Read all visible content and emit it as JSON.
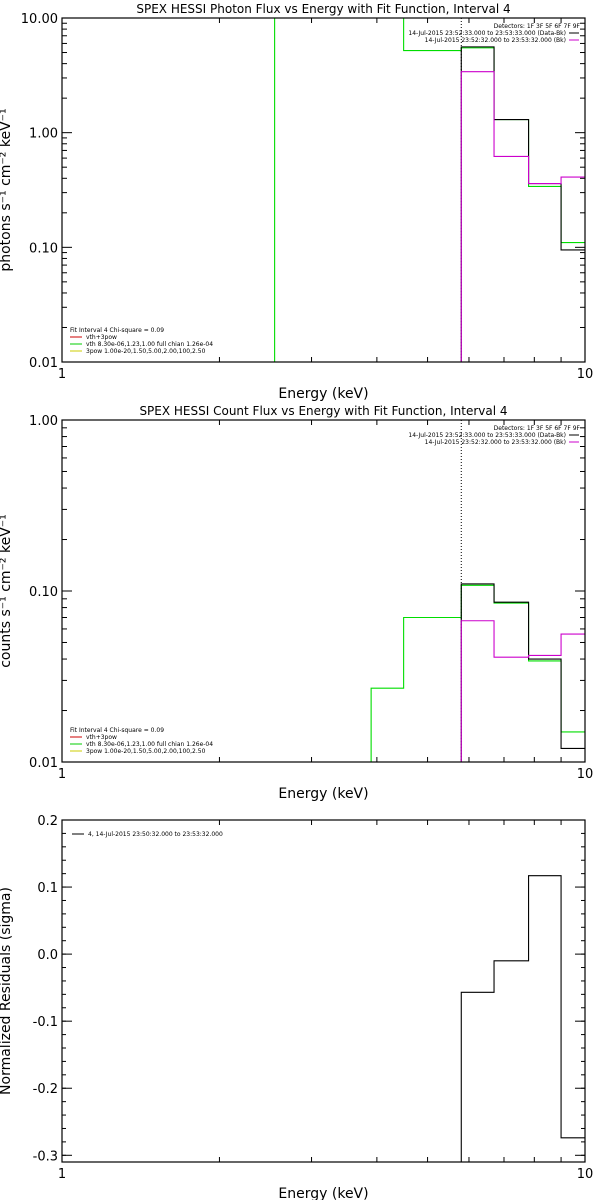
{
  "chart_data": [
    {
      "type": "line",
      "title": "SPEX HESSI Photon Flux vs Energy with Fit Function, Interval 4",
      "xlabel": "Energy (keV)",
      "ylabel": "photons s⁻¹ cm⁻² keV⁻¹",
      "xscale": "log",
      "yscale": "log",
      "xlim": [
        1,
        10
      ],
      "ylim": [
        0.01,
        10
      ],
      "xticks": [
        {
          "v": 1,
          "label": "1"
        },
        {
          "v": 10,
          "label": "10"
        }
      ],
      "yticks": [
        {
          "v": 0.01,
          "label": "0.01"
        },
        {
          "v": 0.1,
          "label": "0.10"
        },
        {
          "v": 1,
          "label": "1.00"
        },
        {
          "v": 10,
          "label": "10.00"
        }
      ],
      "legend": {
        "placement": "top-right",
        "header": "Detectors: 1F 3F 5F 6F 7F 9F",
        "entries": [
          {
            "text": "14-Jul-2015 23:52:33.000 to 23:53:33.000 (Data-Bk)",
            "color": "#000000"
          },
          {
            "text": "14-Jul-2015 23:52:32.000 to 23:53:32.000 (Bk)",
            "color": "#cc00cc"
          }
        ]
      },
      "fit_legend": {
        "placement": "bottom-left",
        "title": "Fit Interval 4   Chi-square = 0.09",
        "entries": [
          {
            "text": "vth+3pow",
            "color": "#cc0000"
          },
          {
            "text": "vth 8.30e-06,1.23,1.00  full chian 1.26e-04",
            "color": "#00cc00"
          },
          {
            "text": "3pow 1.00e-20,1.50,5.00,2.00,100,2.50",
            "color": "#cccc00"
          }
        ]
      },
      "vlines": [
        {
          "x": 5.8,
          "color": "#000000",
          "dash": true
        }
      ],
      "series": [
        {
          "color": "#00dd00",
          "steps": [
            [
              2.55,
              3.3,
              40
            ],
            [
              3.3,
              3.9,
              40
            ],
            [
              3.9,
              4.5,
              40
            ],
            [
              4.5,
              5.8,
              5.2
            ],
            [
              5.8,
              6.7,
              5.5
            ],
            [
              6.7,
              7.8,
              1.3
            ],
            [
              7.8,
              9.0,
              0.34
            ],
            [
              9.0,
              10,
              0.11
            ]
          ]
        },
        {
          "color": "#000000",
          "steps": [
            [
              5.8,
              6.7,
              5.6
            ],
            [
              6.7,
              7.8,
              1.3
            ],
            [
              7.8,
              9.0,
              0.36
            ],
            [
              9.0,
              10,
              0.095
            ]
          ]
        },
        {
          "color": "#cc00cc",
          "steps": [
            [
              5.8,
              6.7,
              3.4
            ],
            [
              6.7,
              7.8,
              0.62
            ],
            [
              7.8,
              9.0,
              0.36
            ],
            [
              9.0,
              10,
              0.41
            ]
          ]
        }
      ]
    },
    {
      "type": "line",
      "title": "SPEX HESSI Count Flux vs Energy with Fit Function, Interval 4",
      "xlabel": "Energy (keV)",
      "ylabel": "counts s⁻¹ cm⁻² keV⁻¹",
      "xscale": "log",
      "yscale": "log",
      "xlim": [
        1,
        10
      ],
      "ylim": [
        0.01,
        1
      ],
      "xticks": [
        {
          "v": 1,
          "label": "1"
        },
        {
          "v": 10,
          "label": "10"
        }
      ],
      "yticks": [
        {
          "v": 0.01,
          "label": "0.01"
        },
        {
          "v": 0.1,
          "label": "0.10"
        },
        {
          "v": 1,
          "label": "1.00"
        }
      ],
      "legend": {
        "placement": "top-right",
        "header": "Detectors: 1F 3F 5F 6F 7F 9F",
        "entries": [
          {
            "text": "14-Jul-2015 23:52:33.000 to 23:53:33.000 (Data-Bk)",
            "color": "#000000"
          },
          {
            "text": "14-Jul-2015 23:52:32.000 to 23:53:32.000 (Bk)",
            "color": "#cc00cc"
          }
        ]
      },
      "fit_legend": {
        "placement": "bottom-left",
        "title": "Fit Interval 4   Chi-square = 0.09",
        "entries": [
          {
            "text": "vth+3pow",
            "color": "#cc0000"
          },
          {
            "text": "vth 8.30e-06,1.23,1.00  full chian 1.26e-04",
            "color": "#00cc00"
          },
          {
            "text": "3pow 1.00e-20,1.50,5.00,2.00,100,2.50",
            "color": "#cccc00"
          }
        ]
      },
      "vlines": [
        {
          "x": 5.8,
          "color": "#000000",
          "dash": true
        }
      ],
      "series": [
        {
          "color": "#00dd00",
          "steps": [
            [
              3.9,
              4.5,
              0.027
            ],
            [
              4.5,
              5.8,
              0.07
            ],
            [
              5.8,
              6.7,
              0.108
            ],
            [
              6.7,
              7.8,
              0.085
            ],
            [
              7.8,
              9.0,
              0.039
            ],
            [
              9.0,
              10,
              0.015
            ]
          ]
        },
        {
          "color": "#000000",
          "steps": [
            [
              5.8,
              6.7,
              0.11
            ],
            [
              6.7,
              7.8,
              0.086
            ],
            [
              7.8,
              9.0,
              0.04
            ],
            [
              9.0,
              10,
              0.012
            ]
          ]
        },
        {
          "color": "#cc00cc",
          "steps": [
            [
              5.8,
              6.7,
              0.067
            ],
            [
              6.7,
              7.8,
              0.041
            ],
            [
              7.8,
              9.0,
              0.042
            ],
            [
              9.0,
              10,
              0.056
            ]
          ]
        }
      ]
    },
    {
      "type": "line",
      "title": "",
      "xlabel": "Energy (keV)",
      "ylabel": "Normalized Residuals (sigma)",
      "xscale": "log",
      "yscale": "linear",
      "xlim": [
        1,
        10
      ],
      "ylim": [
        -0.31,
        0.2
      ],
      "xticks": [
        {
          "v": 1,
          "label": "1"
        },
        {
          "v": 10,
          "label": "10"
        }
      ],
      "yticks": [
        {
          "v": 0.2,
          "label": "0.2"
        },
        {
          "v": 0.1,
          "label": "0.1"
        },
        {
          "v": 0.0,
          "label": "0.0"
        },
        {
          "v": -0.1,
          "label": "-0.1"
        },
        {
          "v": -0.2,
          "label": "-0.2"
        },
        {
          "v": -0.3,
          "label": "-0.3"
        }
      ],
      "legend": {
        "placement": "top-left",
        "header": "",
        "entries": [
          {
            "text": "4, 14-Jul-2015 23:50:32.000 to 23:53:32.000",
            "color": "#000000"
          }
        ]
      },
      "vlines": [],
      "series": [
        {
          "color": "#000000",
          "steps": [
            [
              5.8,
              6.7,
              -0.057
            ],
            [
              6.7,
              7.8,
              -0.01
            ],
            [
              7.8,
              9.0,
              0.117
            ],
            [
              9.0,
              10,
              -0.274
            ]
          ]
        }
      ]
    }
  ]
}
